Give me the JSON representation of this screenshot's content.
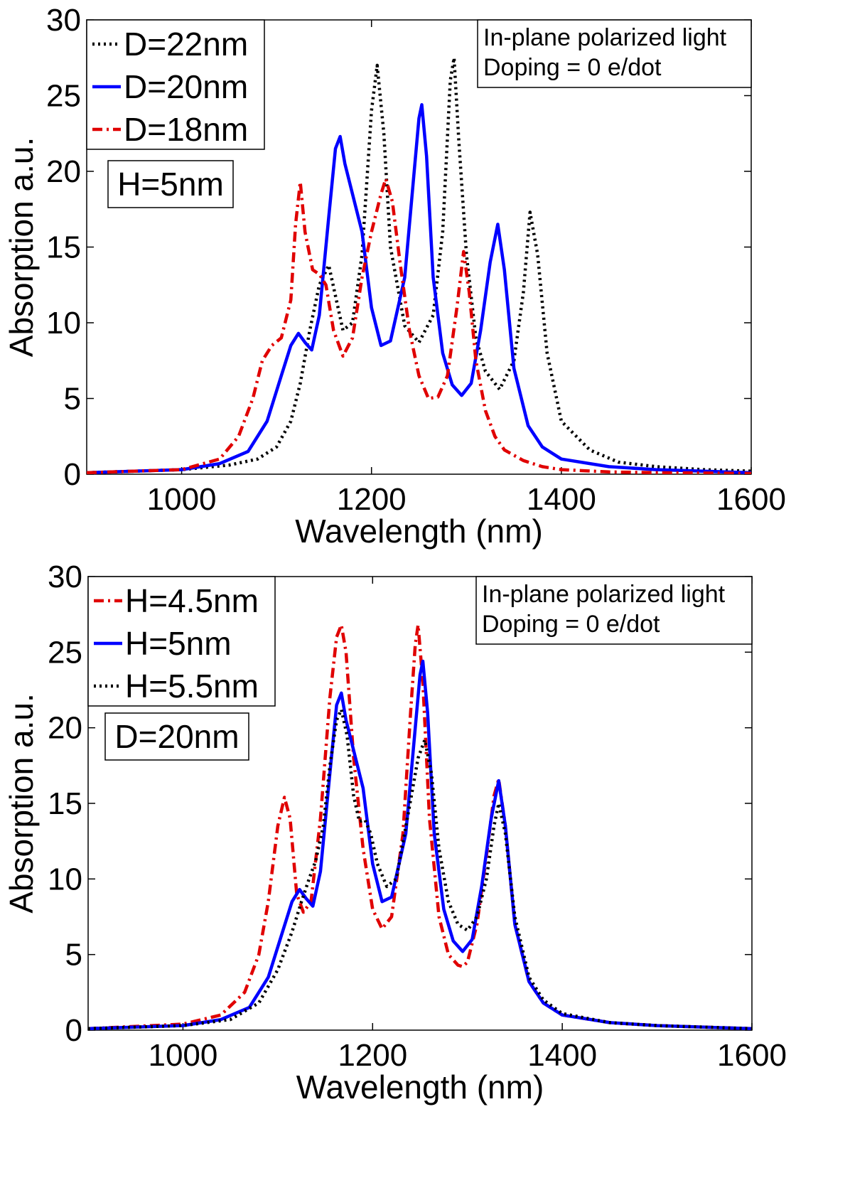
{
  "chart_data": [
    {
      "type": "line",
      "xlabel": "Wavelength (nm)",
      "ylabel": "Absorption a.u.",
      "xlim": [
        900,
        1600
      ],
      "ylim": [
        0,
        30
      ],
      "xticks": [
        "1000",
        "1200",
        "1400",
        "1600"
      ],
      "yticks": [
        "0",
        "5",
        "10",
        "15",
        "20",
        "25",
        "30"
      ],
      "grid": false,
      "legend_position": "top-left",
      "annotation_lines": [
        "In-plane polarized light",
        "Doping = 0 e/dot"
      ],
      "label_box": "H=5nm",
      "series": [
        {
          "name": "D=22nm",
          "color": "#000000",
          "style": "dotted",
          "x": [
            900,
            1000,
            1050,
            1080,
            1100,
            1115,
            1125,
            1135,
            1145,
            1155,
            1163,
            1170,
            1180,
            1190,
            1200,
            1206,
            1213,
            1220,
            1235,
            1250,
            1265,
            1275,
            1283,
            1287,
            1292,
            1300,
            1310,
            1320,
            1335,
            1350,
            1360,
            1367,
            1375,
            1385,
            1400,
            1430,
            1460,
            1500,
            1550,
            1600
          ],
          "y": [
            0.1,
            0.3,
            0.6,
            1.0,
            1.8,
            3.5,
            6.0,
            9.5,
            12.5,
            13.8,
            11.5,
            9.5,
            10.0,
            14.5,
            24.0,
            27.0,
            22.5,
            15.0,
            9.8,
            8.7,
            10.5,
            16.0,
            26.0,
            27.5,
            22.0,
            14.5,
            9.0,
            6.8,
            5.6,
            7.5,
            12.0,
            17.3,
            14.5,
            8.0,
            3.5,
            1.6,
            0.8,
            0.5,
            0.3,
            0.2
          ]
        },
        {
          "name": "D=20nm",
          "color": "#0000ff",
          "style": "solid",
          "x": [
            900,
            1000,
            1040,
            1070,
            1090,
            1105,
            1115,
            1123,
            1130,
            1137,
            1145,
            1155,
            1162,
            1167,
            1172,
            1180,
            1190,
            1200,
            1210,
            1220,
            1235,
            1245,
            1250,
            1253,
            1258,
            1265,
            1275,
            1285,
            1295,
            1305,
            1315,
            1325,
            1333,
            1340,
            1350,
            1365,
            1380,
            1400,
            1450,
            1500,
            1600
          ],
          "y": [
            0.1,
            0.3,
            0.7,
            1.5,
            3.5,
            6.5,
            8.5,
            9.3,
            8.7,
            8.2,
            10.5,
            17.0,
            21.5,
            22.3,
            20.5,
            18.5,
            16.0,
            11.0,
            8.5,
            8.8,
            13.0,
            20.0,
            23.5,
            24.4,
            21.0,
            13.0,
            8.0,
            5.9,
            5.2,
            6.0,
            9.5,
            14.0,
            16.5,
            13.5,
            7.0,
            3.2,
            1.8,
            1.0,
            0.5,
            0.3,
            0.1
          ]
        },
        {
          "name": "D=18nm",
          "color": "#e00000",
          "style": "dashdot",
          "x": [
            900,
            1000,
            1040,
            1060,
            1075,
            1085,
            1095,
            1105,
            1115,
            1120,
            1125,
            1130,
            1138,
            1145,
            1152,
            1160,
            1170,
            1180,
            1190,
            1200,
            1210,
            1215,
            1222,
            1230,
            1240,
            1250,
            1260,
            1270,
            1280,
            1290,
            1297,
            1303,
            1310,
            1320,
            1330,
            1340,
            1360,
            1380,
            1400,
            1450,
            1500,
            1600
          ],
          "y": [
            0.1,
            0.3,
            1.0,
            2.5,
            5.0,
            7.5,
            8.5,
            9.0,
            11.5,
            16.5,
            19.3,
            16.0,
            13.5,
            13.2,
            12.5,
            9.5,
            7.8,
            9.0,
            13.0,
            16.0,
            18.5,
            19.5,
            18.0,
            14.0,
            9.5,
            6.5,
            5.0,
            5.1,
            6.5,
            11.0,
            14.7,
            12.0,
            7.5,
            4.2,
            2.5,
            1.6,
            0.9,
            0.5,
            0.3,
            0.15,
            0.1,
            0.05
          ]
        }
      ]
    },
    {
      "type": "line",
      "xlabel": "Wavelength (nm)",
      "ylabel": "Absorption a.u.",
      "xlim": [
        900,
        1600
      ],
      "ylim": [
        0,
        30
      ],
      "xticks": [
        "1000",
        "1200",
        "1400",
        "1600"
      ],
      "yticks": [
        "0",
        "5",
        "10",
        "15",
        "20",
        "25",
        "30"
      ],
      "grid": false,
      "legend_position": "top-left",
      "annotation_lines": [
        "In-plane polarized light",
        "Doping = 0 e/dot"
      ],
      "label_box": "D=20nm",
      "series": [
        {
          "name": "H=4.5nm",
          "color": "#e00000",
          "style": "dashdot",
          "x": [
            900,
            1000,
            1040,
            1065,
            1080,
            1090,
            1100,
            1107,
            1113,
            1120,
            1127,
            1135,
            1145,
            1155,
            1162,
            1167,
            1172,
            1180,
            1190,
            1200,
            1210,
            1220,
            1232,
            1240,
            1245,
            1248,
            1253,
            1260,
            1270,
            1280,
            1290,
            1295,
            1300,
            1310,
            1320,
            1328,
            1333,
            1340,
            1350,
            1365,
            1380,
            1400,
            1450,
            1500,
            1600
          ],
          "y": [
            0.1,
            0.4,
            1.0,
            2.5,
            5.0,
            8.5,
            13.5,
            15.4,
            14.0,
            9.0,
            7.8,
            8.5,
            14.0,
            22.0,
            26.0,
            26.8,
            25.0,
            18.0,
            12.0,
            8.0,
            6.7,
            7.5,
            13.0,
            21.0,
            25.5,
            26.8,
            23.0,
            14.0,
            7.5,
            5.0,
            4.3,
            4.2,
            4.5,
            7.0,
            11.5,
            15.5,
            16.6,
            13.5,
            7.0,
            3.2,
            1.8,
            1.0,
            0.5,
            0.3,
            0.1
          ]
        },
        {
          "name": "H=5nm",
          "color": "#0000ff",
          "style": "solid",
          "x": [
            900,
            1000,
            1040,
            1070,
            1090,
            1105,
            1115,
            1123,
            1130,
            1137,
            1145,
            1155,
            1162,
            1167,
            1172,
            1180,
            1190,
            1200,
            1210,
            1220,
            1235,
            1245,
            1250,
            1253,
            1258,
            1265,
            1275,
            1285,
            1295,
            1305,
            1315,
            1325,
            1333,
            1340,
            1350,
            1365,
            1380,
            1400,
            1450,
            1500,
            1600
          ],
          "y": [
            0.1,
            0.3,
            0.7,
            1.5,
            3.5,
            6.5,
            8.5,
            9.3,
            8.7,
            8.2,
            10.5,
            17.0,
            21.5,
            22.3,
            20.5,
            18.5,
            16.0,
            11.0,
            8.5,
            8.8,
            13.0,
            20.0,
            23.5,
            24.4,
            21.0,
            13.0,
            8.0,
            5.9,
            5.2,
            6.0,
            9.5,
            14.0,
            16.5,
            13.5,
            7.0,
            3.2,
            1.8,
            1.0,
            0.5,
            0.3,
            0.1
          ]
        },
        {
          "name": "H=5.5nm",
          "color": "#000000",
          "style": "dotted",
          "x": [
            900,
            1000,
            1050,
            1080,
            1100,
            1115,
            1125,
            1133,
            1140,
            1148,
            1155,
            1162,
            1167,
            1173,
            1180,
            1186,
            1192,
            1198,
            1205,
            1215,
            1225,
            1238,
            1248,
            1255,
            1262,
            1270,
            1280,
            1290,
            1300,
            1310,
            1320,
            1328,
            1333,
            1340,
            1350,
            1365,
            1380,
            1400,
            1450,
            1500,
            1600
          ],
          "y": [
            0.1,
            0.3,
            0.7,
            1.8,
            4.0,
            6.5,
            8.5,
            10.0,
            11.2,
            13.5,
            17.5,
            20.5,
            21.2,
            19.5,
            15.5,
            13.8,
            13.9,
            13.0,
            11.0,
            9.5,
            10.0,
            14.5,
            18.0,
            19.2,
            17.0,
            12.0,
            8.5,
            7.0,
            6.6,
            7.5,
            10.0,
            13.5,
            15.0,
            13.0,
            7.5,
            3.5,
            2.0,
            1.1,
            0.5,
            0.3,
            0.1
          ]
        }
      ]
    }
  ]
}
